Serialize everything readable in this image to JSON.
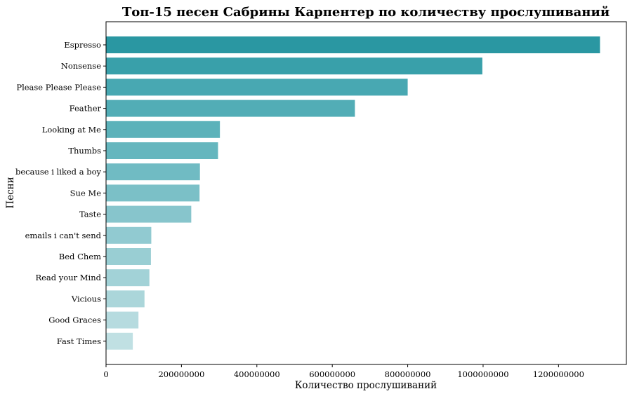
{
  "chart_data": {
    "type": "bar",
    "orientation": "horizontal",
    "title": "Топ-15 песен Сабрины Карпентер по количеству прослушиваний",
    "xlabel": "Количество прослушиваний",
    "ylabel": "Песни",
    "xlim": [
      0,
      1380000000
    ],
    "xticks": [
      0,
      200000000,
      400000000,
      600000000,
      800000000,
      1000000000,
      1200000000
    ],
    "xtick_labels": [
      "0",
      "200000000",
      "400000000",
      "600000000",
      "800000000",
      "1000000000",
      "1200000000"
    ],
    "grid": false,
    "categories": [
      "Espresso",
      "Nonsense",
      "Please Please Please",
      "Feather",
      "Looking at Me",
      "Thumbs",
      "because i liked a boy",
      "Sue Me",
      "Taste",
      "emails i can't send",
      "Bed Chem",
      "Read your Mind",
      "Vicious",
      "Good Graces",
      "Fast Times"
    ],
    "values": [
      1310000000,
      998000000,
      800000000,
      660000000,
      302000000,
      297000000,
      249000000,
      248000000,
      226000000,
      120000000,
      119000000,
      115000000,
      102000000,
      86000000,
      71000000
    ],
    "colors": [
      "#2a97a2",
      "#39a0aa",
      "#48a8b2",
      "#52adb6",
      "#5cb2ba",
      "#65b6be",
      "#70bbc3",
      "#7bc0c7",
      "#87c5cc",
      "#91cad1",
      "#99ced3",
      "#a2d2d7",
      "#abd6da",
      "#b6dbdf",
      "#c0e0e3"
    ]
  }
}
